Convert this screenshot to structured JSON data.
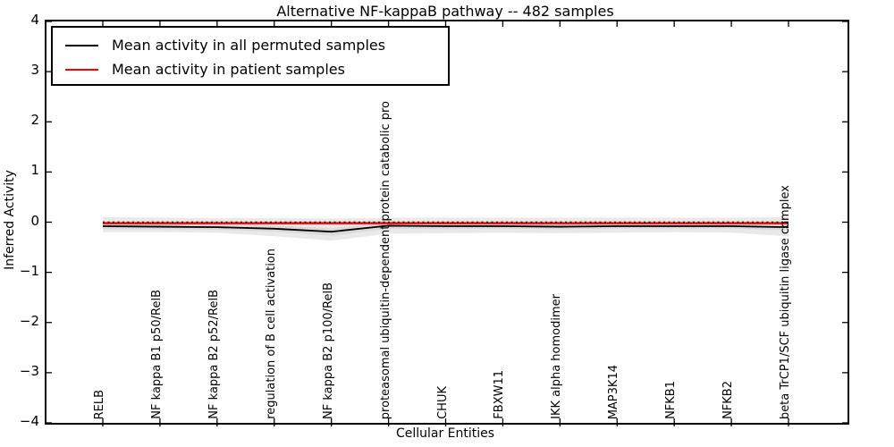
{
  "title": "Alternative NF-kappaB pathway -- 482 samples",
  "xlabel": "Cellular Entities",
  "ylabel": "Inferred Activity",
  "legend": {
    "items": [
      {
        "label": "Mean activity in all permuted samples",
        "color": "#000000"
      },
      {
        "label": "Mean activity in patient samples",
        "color": "#ff0000"
      }
    ]
  },
  "chart_data": {
    "type": "line",
    "title": "Alternative NF-kappaB pathway -- 482 samples",
    "xlabel": "Cellular Entities",
    "ylabel": "Inferred Activity",
    "ylim": [
      -4,
      4
    ],
    "grid": false,
    "legend_position": "upper left",
    "ytick_values": [
      4,
      3,
      2,
      1,
      0,
      -1,
      -2,
      -3,
      -4
    ],
    "ytick_labels": [
      "4",
      "3",
      "2",
      "1",
      "0",
      "−1",
      "−2",
      "−3",
      "−4"
    ],
    "categories": [
      "RELB",
      "NF kappa B1 p50/RelB",
      "NF kappa B2 p52/RelB",
      "regulation of B cell activation",
      "NF kappa B2 p100/RelB",
      "proteasomal ubiquitin-dependent protein catabolic pro",
      "CHUK",
      "FBXW11",
      "IKK alpha homodimer",
      "MAP3K14",
      "NFKB1",
      "NFKB2",
      "beta TrCP1/SCF ubiquitin ligase complex"
    ],
    "series": [
      {
        "name": "Mean activity in all permuted samples",
        "color": "#000000",
        "style": "solid",
        "width": 1.8,
        "values": [
          -0.08,
          -0.09,
          -0.1,
          -0.13,
          -0.19,
          -0.07,
          -0.08,
          -0.08,
          -0.09,
          -0.08,
          -0.08,
          -0.08,
          -0.1
        ]
      },
      {
        "name": "Mean activity in patient samples",
        "color": "#ff0000",
        "style": "solid",
        "width": 2.6,
        "values": [
          -0.02,
          -0.02,
          -0.02,
          -0.02,
          -0.02,
          -0.02,
          -0.02,
          -0.02,
          -0.02,
          -0.02,
          -0.02,
          -0.02,
          -0.02
        ]
      },
      {
        "name": "zero-reference-line",
        "color": "#000000",
        "style": "dotted",
        "width": 1.6,
        "values": [
          0,
          0,
          0,
          0,
          0,
          0,
          0,
          0,
          0,
          0,
          0,
          0,
          0
        ]
      }
    ],
    "bands": [
      {
        "name": "permuted-outer-band",
        "color": "#e9e9e9",
        "upper": [
          0.1,
          0.09,
          0.08,
          0.08,
          0.07,
          0.09,
          0.09,
          0.09,
          0.09,
          0.09,
          0.09,
          0.09,
          0.1
        ],
        "lower": [
          -0.2,
          -0.2,
          -0.21,
          -0.28,
          -0.37,
          -0.23,
          -0.22,
          -0.21,
          -0.22,
          -0.21,
          -0.2,
          -0.21,
          -0.28
        ]
      },
      {
        "name": "permuted-inner-band",
        "color": "#dadada",
        "upper": [
          -0.03,
          -0.04,
          -0.05,
          -0.07,
          -0.12,
          -0.03,
          -0.03,
          -0.03,
          -0.04,
          -0.03,
          -0.03,
          -0.03,
          -0.04
        ],
        "lower": [
          -0.14,
          -0.14,
          -0.15,
          -0.19,
          -0.27,
          -0.13,
          -0.14,
          -0.13,
          -0.14,
          -0.13,
          -0.13,
          -0.13,
          -0.16
        ]
      }
    ]
  }
}
